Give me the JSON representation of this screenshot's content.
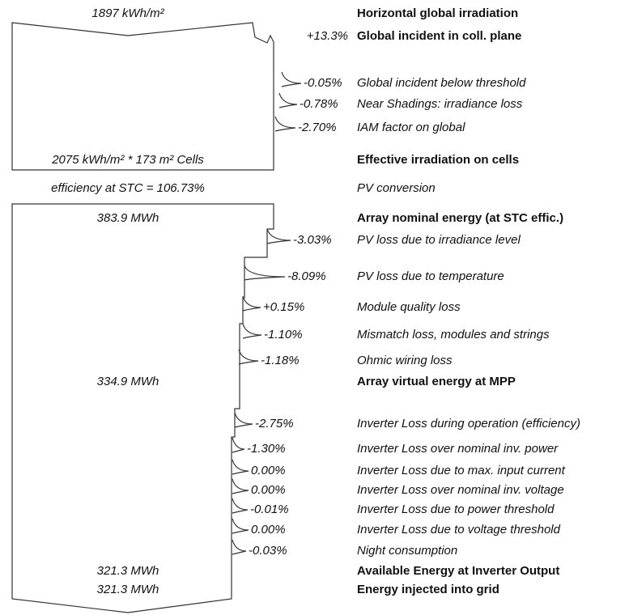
{
  "steps": [
    {
      "amount": "1897 kWh/m²",
      "label": "Horizontal global irradiation"
    },
    {
      "change": "+13.3%",
      "label": "Global incident in coll. plane"
    },
    {
      "change": "-0.05%",
      "label": "Global incident below threshold"
    },
    {
      "change": "-0.78%",
      "label": "Near Shadings: irradiance loss"
    },
    {
      "change": "-2.70%",
      "label": "IAM factor on global"
    },
    {
      "amount": "2075 kWh/m² * 173 m² Cells",
      "label": "Effective irradiation on cells"
    },
    {
      "amount": "efficiency at STC = 106.73%",
      "label": "PV conversion"
    },
    {
      "amount": "383.9 MWh",
      "label": "Array nominal energy (at STC effic.)"
    },
    {
      "change": "-3.03%",
      "label": "PV loss due to irradiance level"
    },
    {
      "change": "-8.09%",
      "label": "PV loss due to temperature"
    },
    {
      "change": "+0.15%",
      "label": "Module quality loss"
    },
    {
      "change": "-1.10%",
      "label": "Mismatch loss, modules and strings"
    },
    {
      "change": "-1.18%",
      "label": "Ohmic wiring loss"
    },
    {
      "amount": "334.9 MWh",
      "label": "Array virtual energy at MPP"
    },
    {
      "change": "-2.75%",
      "label": "Inverter Loss during operation (efficiency)"
    },
    {
      "change": "-1.30%",
      "label": "Inverter Loss over nominal inv. power"
    },
    {
      "change": "0.00%",
      "label": "Inverter Loss due to max. input current"
    },
    {
      "change": "0.00%",
      "label": "Inverter Loss over nominal inv. voltage"
    },
    {
      "change": "-0.01%",
      "label": "Inverter Loss due to power threshold"
    },
    {
      "change": "0.00%",
      "label": "Inverter Loss due to voltage threshold"
    },
    {
      "change": "-0.03%",
      "label": "Night consumption"
    },
    {
      "amount": "321.3 MWh",
      "label": "Available Energy at Inverter Output"
    },
    {
      "amount": "321.3 MWh",
      "label": "Energy injected into grid"
    }
  ]
}
